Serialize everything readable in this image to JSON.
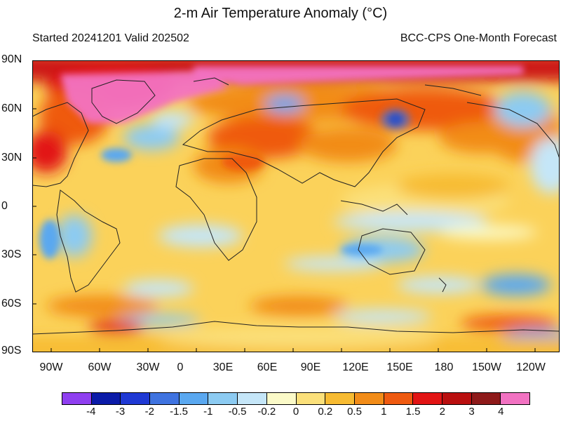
{
  "header": {
    "title": "2-m Air Temperature Anomaly (°C)",
    "subtitle_left": "Started 20241201  Valid 202502",
    "subtitle_right": "BCC-CPS One-Month Forecast"
  },
  "axes": {
    "lat_labels": [
      "90N",
      "60N",
      "30N",
      "0",
      "30S",
      "60S",
      "90S"
    ],
    "lon_labels": [
      "90W",
      "60W",
      "30W",
      "0",
      "30E",
      "60E",
      "90E",
      "120E",
      "150E",
      "180",
      "150W",
      "120W"
    ]
  },
  "colorbar": {
    "colors": [
      "#8f3ff0",
      "#0b1ba8",
      "#1f39d4",
      "#3f73e0",
      "#5aa8f0",
      "#8ccbf2",
      "#c5e6f8",
      "#fbfac8",
      "#fbe07a",
      "#f7bb32",
      "#f28c18",
      "#ef5a10",
      "#e21414",
      "#b90f0f",
      "#8e1a1a",
      "#f272c2"
    ],
    "labels": [
      "-4",
      "-3",
      "-2",
      "-1.5",
      "-1",
      "-0.5",
      "-0.2",
      "0",
      "0.2",
      "0.5",
      "1",
      "1.5",
      "2",
      "3",
      "4"
    ]
  }
}
